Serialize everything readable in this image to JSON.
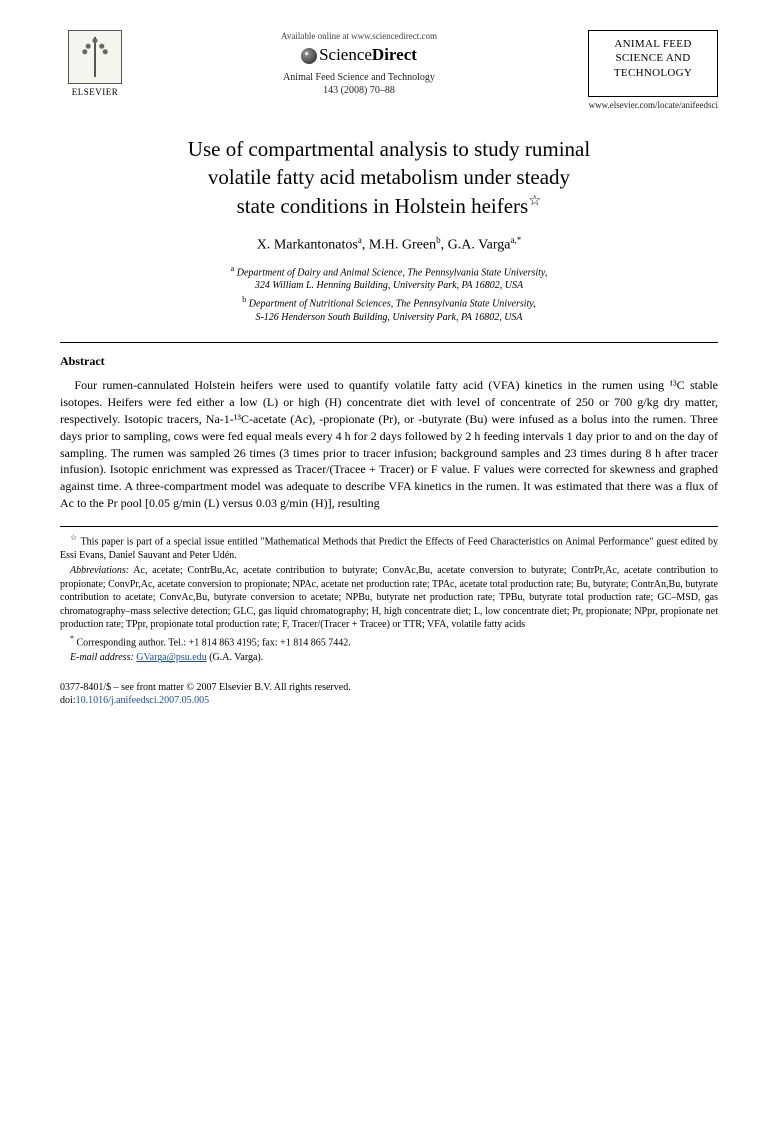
{
  "header": {
    "elsevier_label": "ELSEVIER",
    "available_online": "Available online at www.sciencedirect.com",
    "sciencedirect_light": "Science",
    "sciencedirect_bold": "Direct",
    "journal_name": "Animal Feed Science and Technology",
    "journal_ref": "143 (2008) 70–88",
    "journal_box_name": "ANIMAL FEED SCIENCE AND TECHNOLOGY",
    "locate_url": "www.elsevier.com/locate/anifeedsci"
  },
  "title": {
    "line1": "Use of compartmental analysis to study ruminal",
    "line2": "volatile fatty acid metabolism under steady",
    "line3": "state conditions in Holstein heifers",
    "star": "☆"
  },
  "authors": {
    "a1_name": "X. Markantonatos",
    "a1_sup": "a",
    "a2_name": "M.H. Green",
    "a2_sup": "b",
    "a3_name": "G.A. Varga",
    "a3_sup": "a,",
    "a3_corr": "*"
  },
  "affiliations": {
    "a_sup": "a",
    "a_line1": "Department of Dairy and Animal Science, The Pennsylvania State University,",
    "a_line2": "324 William L. Henning Building, University Park, PA 16802, USA",
    "b_sup": "b",
    "b_line1": "Department of Nutritional Sciences, The Pennsylvania State University,",
    "b_line2": "S-126 Henderson South Building, University Park, PA 16802, USA"
  },
  "abstract": {
    "heading": "Abstract",
    "body": "Four rumen-cannulated Holstein heifers were used to quantify volatile fatty acid (VFA) kinetics in the rumen using ¹³C stable isotopes. Heifers were fed either a low (L) or high (H) concentrate diet with level of concentrate of 250 or 700 g/kg dry matter, respectively. Isotopic tracers, Na-1-¹³C-acetate (Ac), -propionate (Pr), or -butyrate (Bu) were infused as a bolus into the rumen. Three days prior to sampling, cows were fed equal meals every 4 h for 2 days followed by 2 h feeding intervals 1 day prior to and on the day of sampling. The rumen was sampled 26 times (3 times prior to tracer infusion; background samples and 23 times during 8 h after tracer infusion). Isotopic enrichment was expressed as Tracer/(Tracee + Tracer) or F value. F values were corrected for skewness and graphed against time. A three-compartment model was adequate to describe VFA kinetics in the rumen. It was estimated that there was a flux of Ac to the Pr pool [0.05 g/min (L) versus 0.03 g/min (H)], resulting"
  },
  "footnotes": {
    "star": "☆",
    "star_text": "This paper is part of a special issue entitled \"Mathematical Methods that Predict the Effects of Feed Characteristics on Animal Performance\" guest edited by Essi Evans, Daniel Sauvant and Peter Udén.",
    "abbrev_label": "Abbreviations:",
    "abbrev_text": " Ac, acetate; ContrBu,Ac, acetate contribution to butyrate; ConvAc,Bu, acetate conversion to butyrate; ContrPr,Ac, acetate contribution to propionate; ConvPr,Ac, acetate conversion to propionate; NPAc, acetate net production rate; TPAc, acetate total production rate; Bu, butyrate; ContrAn,Bu, butyrate contribution to acetate; ConvAc,Bu, butyrate conversion to acetate; NPBu, butyrate net production rate; TPBu, butyrate total production rate; GC–MSD, gas chromatography–mass selective detection; GLC, gas liquid chromatography; H, high concentrate diet; L, low concentrate diet; Pr, propionate; NPpr, propionate net production rate; TPpr, propionate total production rate; F, Tracer/(Tracer + Tracee) or TTR; VFA, volatile fatty acids",
    "corr_sup": "*",
    "corr_text": "Corresponding author. Tel.: +1 814 863 4195; fax: +1 814 865 7442.",
    "email_label": "E-mail address:",
    "email": "GVarga@psu.edu",
    "email_tail": " (G.A. Varga)."
  },
  "bottom": {
    "issn_line": "0377-8401/$ – see front matter © 2007 Elsevier B.V. All rights reserved.",
    "doi_label": "doi:",
    "doi": "10.1016/j.anifeedsci.2007.05.005"
  }
}
